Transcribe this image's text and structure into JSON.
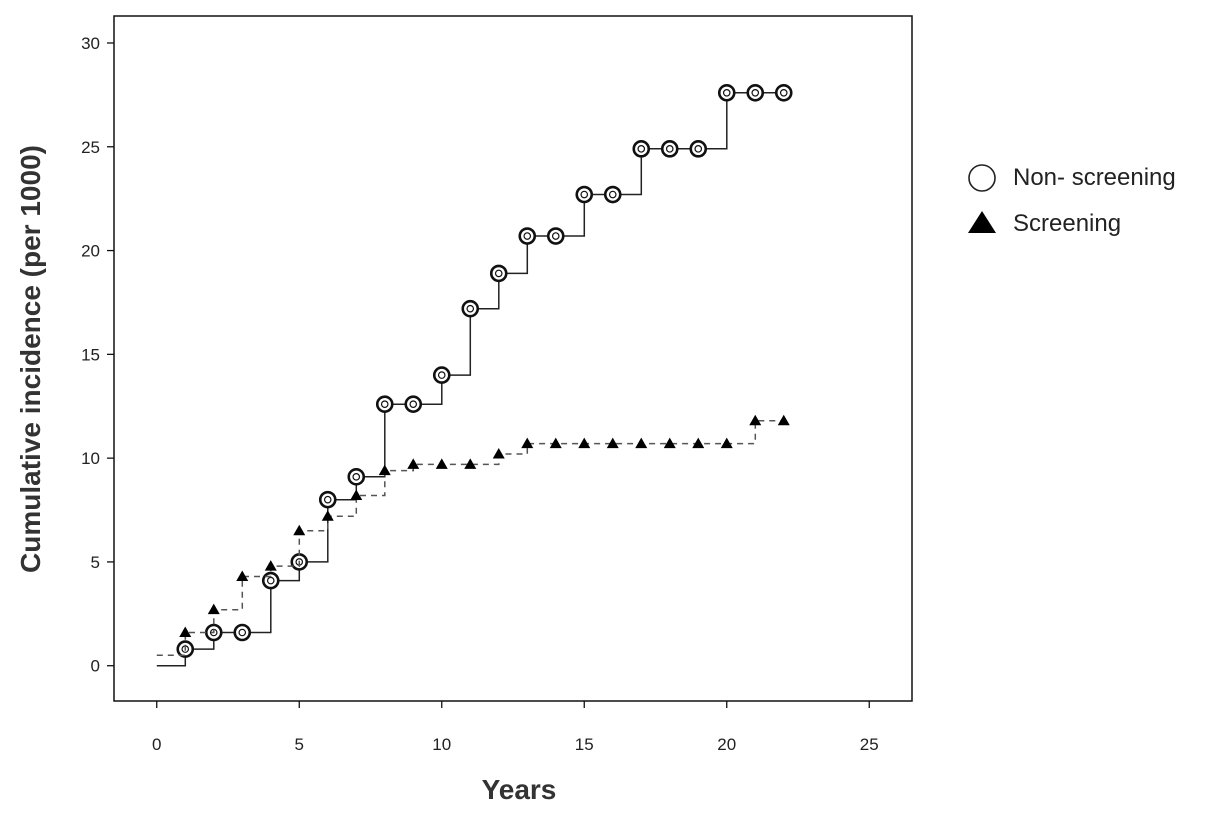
{
  "chart_data": {
    "type": "line",
    "title": "",
    "xlabel": "Years",
    "ylabel": "Cumulative incidence (per 1000)",
    "xlim": [
      -1.5,
      26.5
    ],
    "ylim": [
      -1.7,
      31.3
    ],
    "x_ticks": [
      0,
      5,
      10,
      15,
      20,
      25
    ],
    "y_ticks": [
      0,
      5,
      10,
      15,
      20,
      25,
      30
    ],
    "grid": false,
    "legend_position": "right",
    "step": true,
    "series": [
      {
        "name": "Non- screening",
        "marker": "circle",
        "line_style": "solid",
        "start": [
          0,
          0
        ],
        "x": [
          1,
          2,
          3,
          4,
          5,
          6,
          7,
          8,
          9,
          10,
          11,
          12,
          13,
          14,
          15,
          16,
          17,
          18,
          19,
          20,
          21,
          22
        ],
        "y": [
          0.8,
          1.6,
          1.6,
          4.1,
          5.0,
          8.0,
          9.1,
          12.6,
          12.6,
          14.0,
          17.2,
          18.9,
          20.7,
          20.7,
          22.7,
          22.7,
          24.9,
          24.9,
          24.9,
          27.6,
          27.6,
          27.6
        ]
      },
      {
        "name": "Screening",
        "marker": "triangle",
        "line_style": "dashed",
        "start": [
          0,
          0.5
        ],
        "x": [
          1,
          2,
          3,
          4,
          5,
          6,
          7,
          8,
          9,
          10,
          11,
          12,
          13,
          14,
          15,
          16,
          17,
          18,
          19,
          20,
          21,
          22
        ],
        "y": [
          1.6,
          2.7,
          4.3,
          4.8,
          6.5,
          7.2,
          8.2,
          9.4,
          9.7,
          9.7,
          9.7,
          10.2,
          10.7,
          10.7,
          10.7,
          10.7,
          10.7,
          10.7,
          10.7,
          10.7,
          11.8,
          11.8
        ]
      }
    ]
  }
}
